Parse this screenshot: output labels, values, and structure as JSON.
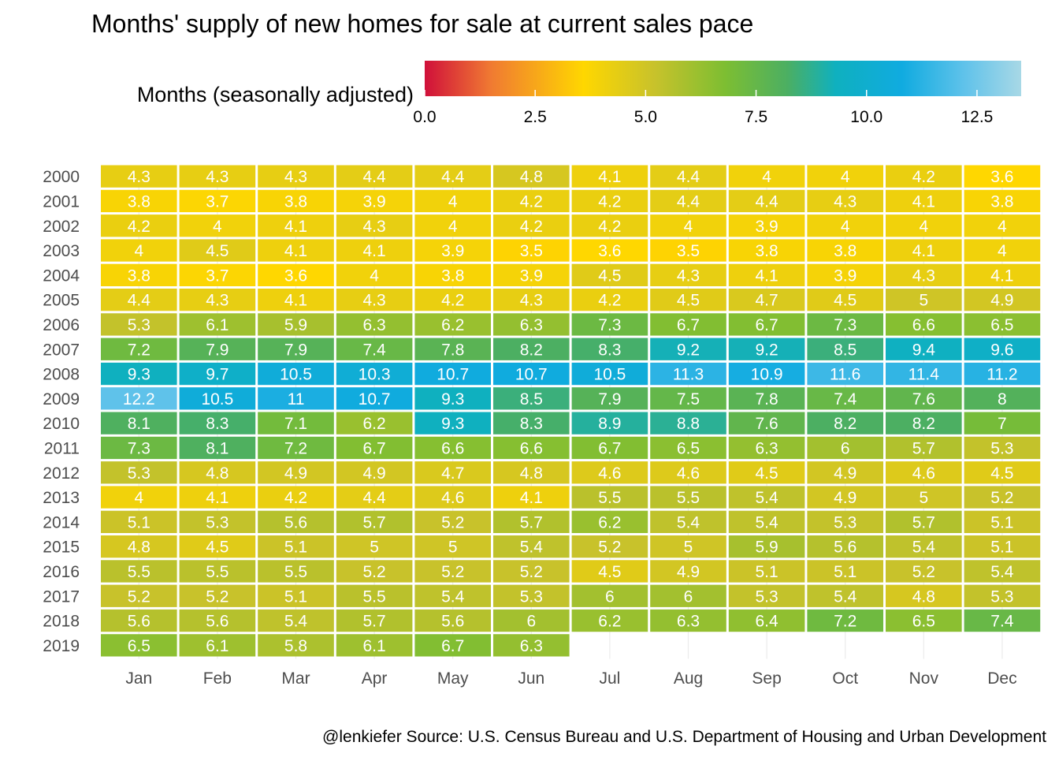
{
  "chart_data": {
    "type": "heatmap",
    "title": "Months' supply of new homes for sale at current sales pace",
    "caption": "@lenkiefer Source: U.S. Census Bureau and  U.S. Department of Housing and Urban Development",
    "legend": {
      "title": "Months (seasonally adjusted)",
      "placement": "top",
      "ticks": [
        "0.0",
        "2.5",
        "5.0",
        "7.5",
        "10.0",
        "12.5"
      ],
      "tick_values": [
        0,
        2.5,
        5,
        7.5,
        10,
        12.5
      ],
      "range": [
        0,
        13.5
      ],
      "colors": [
        {
          "value": 0,
          "color": "#d0103a"
        },
        {
          "value": 1.5,
          "color": "#f07a32"
        },
        {
          "value": 3.6,
          "color": "#ffd700"
        },
        {
          "value": 5.2,
          "color": "#c8c22b"
        },
        {
          "value": 6.8,
          "color": "#7dbe32"
        },
        {
          "value": 8.2,
          "color": "#4caf62"
        },
        {
          "value": 9.3,
          "color": "#0fb0bf"
        },
        {
          "value": 10.8,
          "color": "#10abe0"
        },
        {
          "value": 12.2,
          "color": "#5fc2ea"
        },
        {
          "value": 13.5,
          "color": "#a8d8e6"
        }
      ]
    },
    "x_categories": [
      "Jan",
      "Feb",
      "Mar",
      "Apr",
      "May",
      "Jun",
      "Jul",
      "Aug",
      "Sep",
      "Oct",
      "Nov",
      "Dec"
    ],
    "y_categories": [
      "2000",
      "2001",
      "2002",
      "2003",
      "2004",
      "2005",
      "2006",
      "2007",
      "2008",
      "2009",
      "2010",
      "2011",
      "2012",
      "2013",
      "2014",
      "2015",
      "2016",
      "2017",
      "2018",
      "2019"
    ],
    "values": [
      [
        4.3,
        4.3,
        4.3,
        4.4,
        4.4,
        4.8,
        4.1,
        4.4,
        4,
        4,
        4.2,
        3.6
      ],
      [
        3.8,
        3.7,
        3.8,
        3.9,
        4,
        4.2,
        4.2,
        4.4,
        4.4,
        4.3,
        4.1,
        3.8
      ],
      [
        4.2,
        4,
        4.1,
        4.3,
        4,
        4.2,
        4.2,
        4,
        3.9,
        4,
        4,
        4
      ],
      [
        4,
        4.5,
        4.1,
        4.1,
        3.9,
        3.5,
        3.6,
        3.5,
        3.8,
        3.8,
        4.1,
        4
      ],
      [
        3.8,
        3.7,
        3.6,
        4,
        3.8,
        3.9,
        4.5,
        4.3,
        4.1,
        3.9,
        4.3,
        4.1
      ],
      [
        4.4,
        4.3,
        4.1,
        4.3,
        4.2,
        4.3,
        4.2,
        4.5,
        4.7,
        4.5,
        5,
        4.9
      ],
      [
        5.3,
        6.1,
        5.9,
        6.3,
        6.2,
        6.3,
        7.3,
        6.7,
        6.7,
        7.3,
        6.6,
        6.5
      ],
      [
        7.2,
        7.9,
        7.9,
        7.4,
        7.8,
        8.2,
        8.3,
        9.2,
        9.2,
        8.5,
        9.4,
        9.6
      ],
      [
        9.3,
        9.7,
        10.5,
        10.3,
        10.7,
        10.7,
        10.5,
        11.3,
        10.9,
        11.6,
        11.4,
        11.2
      ],
      [
        12.2,
        10.5,
        11,
        10.7,
        9.3,
        8.5,
        7.9,
        7.5,
        7.8,
        7.4,
        7.6,
        8
      ],
      [
        8.1,
        8.3,
        7.1,
        6.2,
        9.3,
        8.3,
        8.9,
        8.8,
        7.6,
        8.2,
        8.2,
        7
      ],
      [
        7.3,
        8.1,
        7.2,
        6.7,
        6.6,
        6.6,
        6.7,
        6.5,
        6.3,
        6,
        5.7,
        5.3
      ],
      [
        5.3,
        4.8,
        4.9,
        4.9,
        4.7,
        4.8,
        4.6,
        4.6,
        4.5,
        4.9,
        4.6,
        4.5
      ],
      [
        4,
        4.1,
        4.2,
        4.4,
        4.6,
        4.1,
        5.5,
        5.5,
        5.4,
        4.9,
        5,
        5.2
      ],
      [
        5.1,
        5.3,
        5.6,
        5.7,
        5.2,
        5.7,
        6.2,
        5.4,
        5.4,
        5.3,
        5.7,
        5.1
      ],
      [
        4.8,
        4.5,
        5.1,
        5,
        5,
        5.4,
        5.2,
        5,
        5.9,
        5.6,
        5.4,
        5.1
      ],
      [
        5.5,
        5.5,
        5.5,
        5.2,
        5.2,
        5.2,
        4.5,
        4.9,
        5.1,
        5.1,
        5.2,
        5.4
      ],
      [
        5.2,
        5.2,
        5.1,
        5.5,
        5.4,
        5.3,
        6,
        6,
        5.3,
        5.4,
        4.8,
        5.3
      ],
      [
        5.6,
        5.6,
        5.4,
        5.7,
        5.6,
        6,
        6.2,
        6.3,
        6.4,
        7.2,
        6.5,
        7.4
      ],
      [
        6.5,
        6.1,
        5.8,
        6.1,
        6.7,
        6.3,
        null,
        null,
        null,
        null,
        null,
        null
      ]
    ],
    "grid": true
  }
}
